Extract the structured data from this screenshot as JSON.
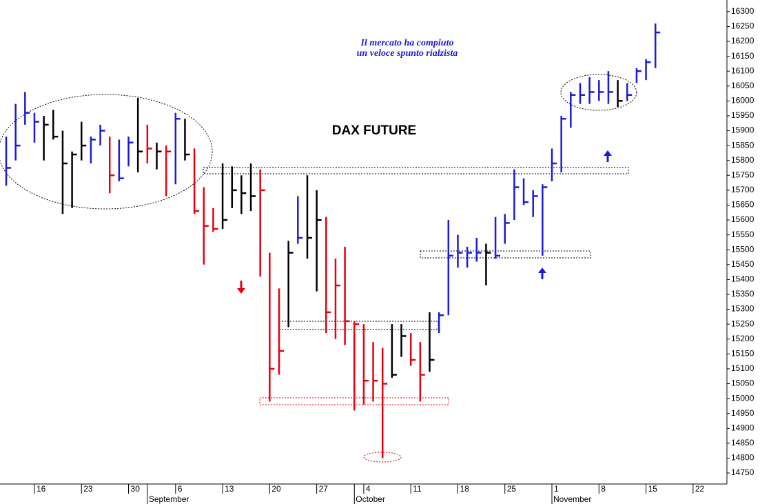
{
  "chart_data": {
    "type": "ohlc",
    "title": "DAX FUTURE",
    "annotations": [
      "Il mercato ha compiuto",
      "un veloce spunto rialzista"
    ],
    "x": [
      0,
      1,
      2,
      3,
      4,
      5,
      6,
      7,
      8,
      9,
      10,
      11,
      12,
      13,
      14,
      15,
      16,
      17,
      18,
      19,
      20,
      21,
      22,
      23,
      24,
      25,
      26,
      27,
      28,
      29,
      30,
      31,
      32,
      33,
      34,
      35,
      36,
      37,
      38,
      39,
      40,
      41,
      42,
      43,
      44,
      45,
      46,
      47,
      48,
      49,
      50,
      51,
      52,
      53,
      54,
      55,
      56,
      57,
      58,
      59,
      60,
      61,
      62,
      63,
      64,
      65,
      66,
      67,
      68,
      69
    ],
    "high": [
      15880,
      15990,
      16030,
      15960,
      15950,
      15970,
      15900,
      15830,
      15930,
      15880,
      15920,
      15880,
      15870,
      15880,
      16010,
      15920,
      15860,
      15850,
      15960,
      15940,
      15840,
      15710,
      15640,
      15790,
      15780,
      15750,
      15790,
      15770,
      15490,
      15370,
      15530,
      15680,
      15750,
      15700,
      15610,
      15470,
      15510,
      15260,
      15250,
      15190,
      15170,
      15250,
      15250,
      15220,
      15190,
      15290,
      15290,
      15600,
      15550,
      15510,
      15540,
      15520,
      15610,
      15620,
      15770,
      15740,
      15700,
      15720,
      15840,
      15950,
      16030,
      16060,
      16080,
      16070,
      16100,
      16070,
      16060,
      16110,
      16140,
      16260
    ],
    "low": [
      15715,
      15800,
      15920,
      15860,
      15800,
      15870,
      15620,
      15640,
      15800,
      15790,
      15850,
      15690,
      15730,
      15780,
      15760,
      15790,
      15770,
      15680,
      15720,
      15800,
      15620,
      15450,
      15560,
      15570,
      15640,
      15620,
      15630,
      15410,
      14990,
      15080,
      15240,
      15520,
      15470,
      15360,
      15220,
      15200,
      15180,
      14960,
      14980,
      14990,
      14800,
      15070,
      15140,
      15110,
      14990,
      15090,
      15220,
      15280,
      15440,
      15440,
      15460,
      15380,
      15470,
      15520,
      15600,
      15650,
      15610,
      15480,
      15730,
      15760,
      15910,
      15990,
      15990,
      16000,
      15990,
      15980,
      16000,
      16060,
      16070,
      16110
    ],
    "close": [
      15775,
      15850,
      15960,
      15930,
      15920,
      15880,
      15790,
      15820,
      15850,
      15870,
      15900,
      15750,
      15740,
      15860,
      15830,
      15840,
      15830,
      15830,
      15940,
      15820,
      15630,
      15580,
      15570,
      15600,
      15700,
      15690,
      15680,
      15700,
      15100,
      15160,
      15490,
      15540,
      15540,
      15600,
      15290,
      15380,
      15260,
      15250,
      15060,
      15060,
      15050,
      15080,
      15210,
      15130,
      15080,
      15130,
      15280,
      15480,
      15490,
      15490,
      15490,
      15490,
      15480,
      15590,
      15710,
      15660,
      15680,
      15710,
      15790,
      15940,
      16020,
      16020,
      16030,
      16030,
      16030,
      16000,
      16020,
      16100,
      16130,
      16230
    ],
    "colors": [
      "#1a1adc",
      "#1a1adc",
      "#1a1adc",
      "#1a1adc",
      "#000000",
      "#000000",
      "#000000",
      "#000000",
      "#000000",
      "#1a1adc",
      "#1a1adc",
      "#e8000f",
      "#1a1adc",
      "#1a1adc",
      "#000000",
      "#e8000f",
      "#000000",
      "#e8000f",
      "#1a1adc",
      "#000000",
      "#e8000f",
      "#e8000f",
      "#e8000f",
      "#000000",
      "#000000",
      "#000000",
      "#000000",
      "#e8000f",
      "#e8000f",
      "#e8000f",
      "#000000",
      "#1a1adc",
      "#000000",
      "#000000",
      "#e8000f",
      "#e8000f",
      "#e8000f",
      "#e8000f",
      "#e8000f",
      "#e8000f",
      "#e8000f",
      "#000000",
      "#000000",
      "#e8000f",
      "#e8000f",
      "#000000",
      "#1a1adc",
      "#1a1adc",
      "#1a1adc",
      "#1a1adc",
      "#1a1adc",
      "#000000",
      "#1a1adc",
      "#1a1adc",
      "#1a1adc",
      "#1a1adc",
      "#1a1adc",
      "#1a1adc",
      "#1a1adc",
      "#1a1adc",
      "#1a1adc",
      "#1a1adc",
      "#1a1adc",
      "#1a1adc",
      "#1a1adc",
      "#000000",
      "#1a1adc",
      "#1a1adc",
      "#1a1adc",
      "#1a1adc"
    ],
    "xlim": [
      -0.66,
      76.6
    ],
    "xticks": [
      {
        "value": 3,
        "label": "16"
      },
      {
        "value": 8,
        "label": "23"
      },
      {
        "value": 13,
        "label": "30"
      },
      {
        "value": 18,
        "label": "6"
      },
      {
        "value": 23,
        "label": "13"
      },
      {
        "value": 28,
        "label": "20"
      },
      {
        "value": 33,
        "label": "27"
      },
      {
        "value": 38,
        "label": "4"
      },
      {
        "value": 43,
        "label": "11"
      },
      {
        "value": 48,
        "label": "18"
      },
      {
        "value": 53,
        "label": "25"
      },
      {
        "value": 58,
        "label": "1"
      },
      {
        "value": 63,
        "label": "8"
      },
      {
        "value": 68,
        "label": "15"
      },
      {
        "value": 73,
        "label": "22"
      }
    ],
    "month_ticks": [
      {
        "value": 15,
        "label": "September"
      },
      {
        "value": 37,
        "label": "October"
      },
      {
        "value": 58,
        "label": "November"
      }
    ],
    "ylim": [
      14713,
      16339
    ],
    "yticks": [
      14750,
      14800,
      14850,
      14900,
      14950,
      15000,
      15050,
      15100,
      15150,
      15200,
      15250,
      15300,
      15350,
      15400,
      15450,
      15500,
      15550,
      15600,
      15650,
      15700,
      15750,
      15800,
      15850,
      15900,
      15950,
      16000,
      16050,
      16100,
      16150,
      16200,
      16250,
      16300
    ]
  }
}
